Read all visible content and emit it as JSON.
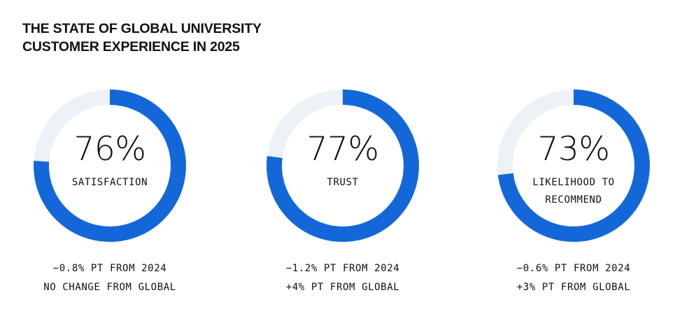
{
  "title": {
    "line1": "THE STATE OF GLOBAL UNIVERSITY",
    "line2": "CUSTOMER EXPERIENCE IN 2025"
  },
  "colors": {
    "arc": "#1467d8",
    "track": "#ecf2f6"
  },
  "chart_data": [
    {
      "type": "pie",
      "value": 76,
      "value_label": "76%",
      "label": [
        "SATISFACTION"
      ],
      "notes": [
        "−0.8% PT FROM 2024",
        "NO CHANGE FROM GLOBAL"
      ]
    },
    {
      "type": "pie",
      "value": 77,
      "value_label": "77%",
      "label": [
        "TRUST"
      ],
      "notes": [
        "−1.2% PT FROM 2024",
        "+4% PT FROM GLOBAL"
      ]
    },
    {
      "type": "pie",
      "value": 73,
      "value_label": "73%",
      "label": [
        "LIKELIHOOD TO",
        "RECOMMEND"
      ],
      "notes": [
        "−0.6% PT FROM 2024",
        "+3% PT FROM GLOBAL"
      ]
    }
  ]
}
